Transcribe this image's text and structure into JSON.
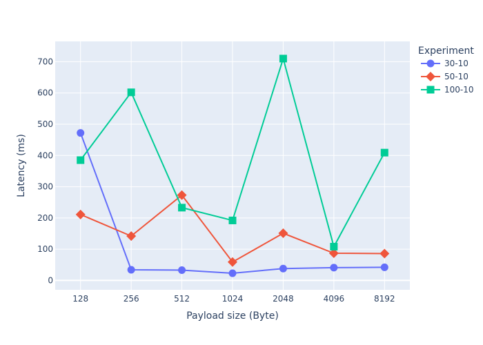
{
  "chart_data": {
    "type": "line",
    "title": "",
    "xlabel": "Payload size (Byte)",
    "ylabel": "Latency (ms)",
    "categories": [
      "128",
      "256",
      "512",
      "1024",
      "2048",
      "4096",
      "8192"
    ],
    "ylim": [
      -30,
      765
    ],
    "yticks": [
      0,
      100,
      200,
      300,
      400,
      500,
      600,
      700
    ],
    "grid": true,
    "legend": {
      "title": "Experiment",
      "position": "right"
    },
    "series": [
      {
        "name": "30-10",
        "color": "#636efa",
        "marker": "circle",
        "values": [
          472,
          34,
          33,
          23,
          38,
          41,
          42
        ]
      },
      {
        "name": "50-10",
        "color": "#ef553b",
        "marker": "diamond",
        "values": [
          211,
          142,
          273,
          59,
          151,
          87,
          86
        ]
      },
      {
        "name": "100-10",
        "color": "#00cc96",
        "marker": "square",
        "values": [
          385,
          602,
          233,
          192,
          710,
          108,
          409
        ]
      }
    ]
  }
}
